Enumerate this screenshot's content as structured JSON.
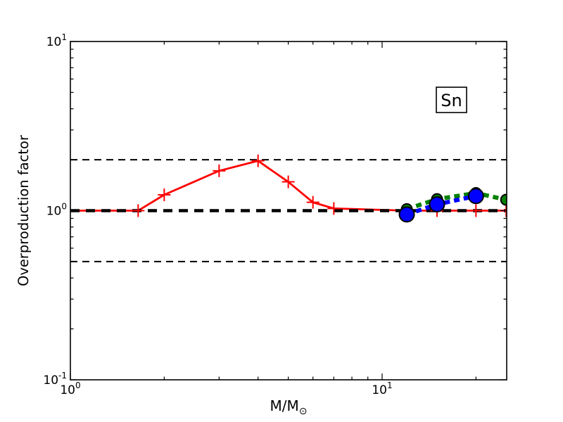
{
  "figure": {
    "background": "#ffffff"
  },
  "chart_data": {
    "type": "line",
    "title": "",
    "xlabel": "M/M⊙",
    "xlabel_main": "M/M",
    "xlabel_subscript": "⊙",
    "ylabel": "Overproduction factor",
    "xscale": "log",
    "yscale": "log",
    "xlim": [
      1,
      25.1
    ],
    "ylim": [
      0.1,
      10
    ],
    "grid": false,
    "legend": "none",
    "annotation": {
      "label": "Sn"
    },
    "x_major_ticks": [
      {
        "value": 1,
        "base": "10",
        "exp": "0"
      },
      {
        "value": 10,
        "base": "10",
        "exp": "1"
      }
    ],
    "x_minor_ticks": [
      2,
      3,
      4,
      5,
      6,
      7,
      8,
      9,
      20
    ],
    "y_major_ticks": [
      {
        "value": 0.1,
        "base": "10",
        "exp": "-1"
      },
      {
        "value": 1,
        "base": "10",
        "exp": "0"
      },
      {
        "value": 10,
        "base": "10",
        "exp": "1"
      }
    ],
    "y_minor_ticks": [
      0.2,
      0.3,
      0.4,
      0.5,
      0.6,
      0.7,
      0.8,
      0.9,
      2,
      3,
      4,
      5,
      6,
      7,
      8,
      9
    ],
    "reference_lines": [
      {
        "y": 2.0,
        "color": "#000000",
        "style": "dashed",
        "width": 2,
        "dash": [
          10,
          7
        ]
      },
      {
        "y": 1.0,
        "color": "#000000",
        "style": "dashed",
        "width": 4.5,
        "dash": [
          13,
          9
        ]
      },
      {
        "y": 0.5,
        "color": "#000000",
        "style": "dashed",
        "width": 2,
        "dash": [
          10,
          7
        ]
      }
    ],
    "series": [
      {
        "id": "red-solid-plus",
        "color": "#ff0000",
        "line_style": "solid",
        "line_width": 2.8,
        "dash": null,
        "marker": "plus",
        "marker_size": 18,
        "marker_edge": "#ff0000",
        "markers_start_index": 1,
        "x": [
          1.0,
          1.65,
          2.0,
          3.0,
          4.0,
          5.0,
          6.0,
          7.0,
          12,
          15,
          20,
          25
        ],
        "y": [
          1.0,
          1.0,
          1.24,
          1.72,
          1.97,
          1.48,
          1.12,
          1.03,
          1.0,
          1.0,
          1.0,
          1.0
        ]
      },
      {
        "id": "green-dashed-circle",
        "color": "#008000",
        "line_style": "dashed",
        "line_width": 6,
        "dash": [
          8,
          6
        ],
        "marker": "circle",
        "marker_size": 15,
        "marker_edge": "#000000",
        "markers_start_index": 0,
        "x": [
          12,
          15,
          20,
          25
        ],
        "y": [
          1.02,
          1.17,
          1.27,
          1.16
        ]
      },
      {
        "id": "blue-dashed-circle",
        "color": "#0000ff",
        "line_style": "dashed",
        "line_width": 6,
        "dash": [
          8,
          6
        ],
        "marker": "circle",
        "marker_size": 21,
        "marker_edge": "#000000",
        "markers_start_index": 0,
        "x": [
          12,
          15,
          20
        ],
        "y": [
          0.95,
          1.09,
          1.22
        ]
      }
    ]
  }
}
